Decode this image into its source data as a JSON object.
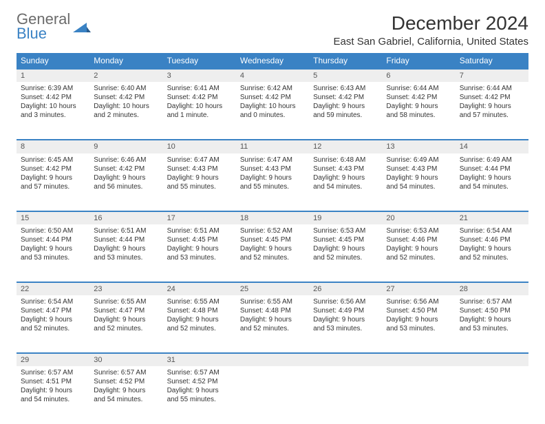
{
  "logo": {
    "top": "General",
    "bottom": "Blue"
  },
  "title": "December 2024",
  "location": "East San Gabriel, California, United States",
  "colors": {
    "header_bg": "#3a82c4",
    "header_text": "#ffffff",
    "daynum_bg": "#eeeeee",
    "border": "#3a82c4",
    "body_text": "#333333",
    "logo_gray": "#6b6b6b",
    "logo_blue": "#3a82c4"
  },
  "font": {
    "family": "Arial",
    "header_size": 12,
    "cell_size": 10,
    "title_size": 28,
    "location_size": 15
  },
  "weekdays": [
    "Sunday",
    "Monday",
    "Tuesday",
    "Wednesday",
    "Thursday",
    "Friday",
    "Saturday"
  ],
  "weeks": [
    [
      {
        "n": "1",
        "sunrise": "6:39 AM",
        "sunset": "4:42 PM",
        "daylight": "10 hours and 3 minutes."
      },
      {
        "n": "2",
        "sunrise": "6:40 AM",
        "sunset": "4:42 PM",
        "daylight": "10 hours and 2 minutes."
      },
      {
        "n": "3",
        "sunrise": "6:41 AM",
        "sunset": "4:42 PM",
        "daylight": "10 hours and 1 minute."
      },
      {
        "n": "4",
        "sunrise": "6:42 AM",
        "sunset": "4:42 PM",
        "daylight": "10 hours and 0 minutes."
      },
      {
        "n": "5",
        "sunrise": "6:43 AM",
        "sunset": "4:42 PM",
        "daylight": "9 hours and 59 minutes."
      },
      {
        "n": "6",
        "sunrise": "6:44 AM",
        "sunset": "4:42 PM",
        "daylight": "9 hours and 58 minutes."
      },
      {
        "n": "7",
        "sunrise": "6:44 AM",
        "sunset": "4:42 PM",
        "daylight": "9 hours and 57 minutes."
      }
    ],
    [
      {
        "n": "8",
        "sunrise": "6:45 AM",
        "sunset": "4:42 PM",
        "daylight": "9 hours and 57 minutes."
      },
      {
        "n": "9",
        "sunrise": "6:46 AM",
        "sunset": "4:42 PM",
        "daylight": "9 hours and 56 minutes."
      },
      {
        "n": "10",
        "sunrise": "6:47 AM",
        "sunset": "4:43 PM",
        "daylight": "9 hours and 55 minutes."
      },
      {
        "n": "11",
        "sunrise": "6:47 AM",
        "sunset": "4:43 PM",
        "daylight": "9 hours and 55 minutes."
      },
      {
        "n": "12",
        "sunrise": "6:48 AM",
        "sunset": "4:43 PM",
        "daylight": "9 hours and 54 minutes."
      },
      {
        "n": "13",
        "sunrise": "6:49 AM",
        "sunset": "4:43 PM",
        "daylight": "9 hours and 54 minutes."
      },
      {
        "n": "14",
        "sunrise": "6:49 AM",
        "sunset": "4:44 PM",
        "daylight": "9 hours and 54 minutes."
      }
    ],
    [
      {
        "n": "15",
        "sunrise": "6:50 AM",
        "sunset": "4:44 PM",
        "daylight": "9 hours and 53 minutes."
      },
      {
        "n": "16",
        "sunrise": "6:51 AM",
        "sunset": "4:44 PM",
        "daylight": "9 hours and 53 minutes."
      },
      {
        "n": "17",
        "sunrise": "6:51 AM",
        "sunset": "4:45 PM",
        "daylight": "9 hours and 53 minutes."
      },
      {
        "n": "18",
        "sunrise": "6:52 AM",
        "sunset": "4:45 PM",
        "daylight": "9 hours and 52 minutes."
      },
      {
        "n": "19",
        "sunrise": "6:53 AM",
        "sunset": "4:45 PM",
        "daylight": "9 hours and 52 minutes."
      },
      {
        "n": "20",
        "sunrise": "6:53 AM",
        "sunset": "4:46 PM",
        "daylight": "9 hours and 52 minutes."
      },
      {
        "n": "21",
        "sunrise": "6:54 AM",
        "sunset": "4:46 PM",
        "daylight": "9 hours and 52 minutes."
      }
    ],
    [
      {
        "n": "22",
        "sunrise": "6:54 AM",
        "sunset": "4:47 PM",
        "daylight": "9 hours and 52 minutes."
      },
      {
        "n": "23",
        "sunrise": "6:55 AM",
        "sunset": "4:47 PM",
        "daylight": "9 hours and 52 minutes."
      },
      {
        "n": "24",
        "sunrise": "6:55 AM",
        "sunset": "4:48 PM",
        "daylight": "9 hours and 52 minutes."
      },
      {
        "n": "25",
        "sunrise": "6:55 AM",
        "sunset": "4:48 PM",
        "daylight": "9 hours and 52 minutes."
      },
      {
        "n": "26",
        "sunrise": "6:56 AM",
        "sunset": "4:49 PM",
        "daylight": "9 hours and 53 minutes."
      },
      {
        "n": "27",
        "sunrise": "6:56 AM",
        "sunset": "4:50 PM",
        "daylight": "9 hours and 53 minutes."
      },
      {
        "n": "28",
        "sunrise": "6:57 AM",
        "sunset": "4:50 PM",
        "daylight": "9 hours and 53 minutes."
      }
    ],
    [
      {
        "n": "29",
        "sunrise": "6:57 AM",
        "sunset": "4:51 PM",
        "daylight": "9 hours and 54 minutes."
      },
      {
        "n": "30",
        "sunrise": "6:57 AM",
        "sunset": "4:52 PM",
        "daylight": "9 hours and 54 minutes."
      },
      {
        "n": "31",
        "sunrise": "6:57 AM",
        "sunset": "4:52 PM",
        "daylight": "9 hours and 55 minutes."
      },
      null,
      null,
      null,
      null
    ]
  ],
  "labels": {
    "sunrise": "Sunrise:",
    "sunset": "Sunset:",
    "daylight": "Daylight:"
  }
}
